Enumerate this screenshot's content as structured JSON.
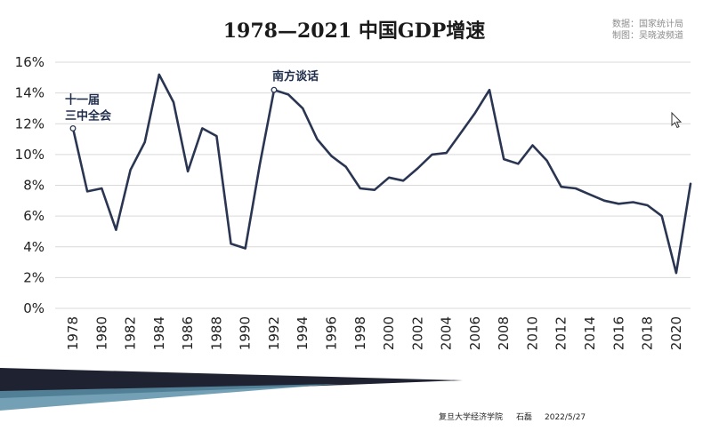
{
  "source": {
    "line1": "数据：国家统计局",
    "line2": "制图：吴晓波频道"
  },
  "footer": {
    "institution": "复旦大学经济学院",
    "author": "石磊",
    "date": "2022/5/27"
  },
  "colors": {
    "line": "#2a3552",
    "grid": "#d9d9d9",
    "annotation": "#1f2d4a"
  },
  "chart_data": {
    "type": "line",
    "title": "1978—2021 中国GDP增速",
    "xlabel": "",
    "ylabel": "",
    "xlim": [
      1978,
      2021
    ],
    "ylim": [
      0,
      16
    ],
    "yticks": [
      0,
      2,
      4,
      6,
      8,
      10,
      12,
      14,
      16
    ],
    "ytick_labels": [
      "0%",
      "2%",
      "4%",
      "6%",
      "8%",
      "10%",
      "12%",
      "14%",
      "16%"
    ],
    "xtick_labels": [
      "1978",
      "1980",
      "1982",
      "1984",
      "1986",
      "1988",
      "1990",
      "1992",
      "1994",
      "1996",
      "1998",
      "2000",
      "2002",
      "2004",
      "2006",
      "2008",
      "2010",
      "2012",
      "2014",
      "2016",
      "2018",
      "2020"
    ],
    "grid": true,
    "x": [
      1978,
      1979,
      1980,
      1981,
      1982,
      1983,
      1984,
      1985,
      1986,
      1987,
      1988,
      1989,
      1990,
      1991,
      1992,
      1993,
      1994,
      1995,
      1996,
      1997,
      1998,
      1999,
      2000,
      2001,
      2002,
      2003,
      2004,
      2005,
      2006,
      2007,
      2008,
      2009,
      2010,
      2011,
      2012,
      2013,
      2014,
      2015,
      2016,
      2017,
      2018,
      2019,
      2020,
      2021
    ],
    "y": [
      11.7,
      7.6,
      7.8,
      5.1,
      9.0,
      10.8,
      15.2,
      13.4,
      8.9,
      11.7,
      11.2,
      4.2,
      3.9,
      9.3,
      14.2,
      13.9,
      13.0,
      11.0,
      9.9,
      9.2,
      7.8,
      7.7,
      8.5,
      8.3,
      9.1,
      10.0,
      10.1,
      11.4,
      12.7,
      14.2,
      9.7,
      9.4,
      10.6,
      9.6,
      7.9,
      7.8,
      7.4,
      7.0,
      6.8,
      6.9,
      6.7,
      6.0,
      2.3,
      8.1
    ],
    "annotations": [
      {
        "x": 1978,
        "y": 11.7,
        "lines": [
          "十一届",
          "三中全会"
        ]
      },
      {
        "x": 1992,
        "y": 14.2,
        "lines": [
          "南方谈话"
        ]
      }
    ]
  }
}
